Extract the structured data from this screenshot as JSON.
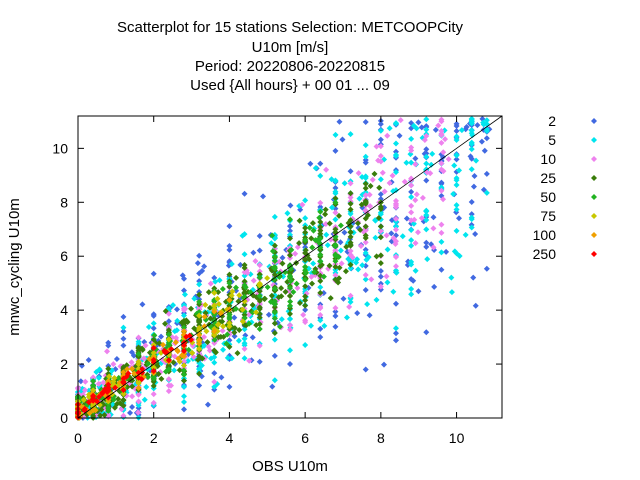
{
  "chart_data": {
    "type": "scatter",
    "title_lines": [
      "Scatterplot for   15 stations Selection: METCOOPCity",
      "U10m [m/s]",
      "Period: 20220806-20220815",
      "Used {All hours} + 00 01 ... 09"
    ],
    "xlabel": "OBS U10m",
    "ylabel": "mnwc_cycling U10m",
    "xlim": [
      0,
      11.2
    ],
    "ylim": [
      0,
      11.2
    ],
    "x_ticks": [
      "0",
      "2",
      "4",
      "6",
      "8",
      "10"
    ],
    "y_ticks": [
      "0",
      "2",
      "4",
      "6",
      "8",
      "10"
    ],
    "grid": false,
    "legend_position": "right",
    "diagonal_line": true,
    "series": [
      {
        "name": "2",
        "color": "#4169e1",
        "spread": 1.5,
        "xmax": 11.0,
        "count": 450
      },
      {
        "name": "5",
        "color": "#00e5ee",
        "spread": 1.2,
        "xmax": 10.8,
        "count": 550
      },
      {
        "name": "10",
        "color": "#ee82ee",
        "spread": 0.9,
        "xmax": 9.8,
        "count": 450
      },
      {
        "name": "25",
        "color": "#3a7d0a",
        "spread": 0.7,
        "xmax": 8.0,
        "count": 550
      },
      {
        "name": "50",
        "color": "#22b322",
        "spread": 0.55,
        "xmax": 7.0,
        "count": 220
      },
      {
        "name": "75",
        "color": "#c8c800",
        "spread": 0.45,
        "xmax": 5.0,
        "count": 120
      },
      {
        "name": "100",
        "color": "#f0a000",
        "spread": 0.4,
        "xmax": 4.0,
        "count": 70
      },
      {
        "name": "250",
        "color": "#ff0000",
        "spread": 0.3,
        "xmax": 3.0,
        "count": 60
      }
    ]
  }
}
